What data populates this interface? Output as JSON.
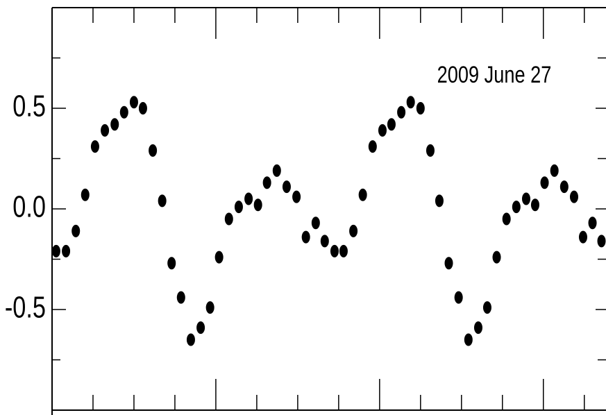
{
  "chart_data": {
    "type": "scatter",
    "annotation": "2009 June 27",
    "x": [
      0.1,
      0.34,
      0.58,
      0.81,
      1.05,
      1.29,
      1.53,
      1.76,
      2.0,
      2.22,
      2.46,
      2.69,
      2.92,
      3.15,
      3.39,
      3.63,
      3.86,
      4.08,
      4.32,
      4.56,
      4.8,
      5.03,
      5.25,
      5.49,
      5.73,
      5.97,
      6.2,
      6.44,
      6.66,
      6.9,
      7.12,
      7.36,
      7.59,
      7.83,
      8.07,
      8.29,
      8.53,
      8.76,
      9.0,
      9.24,
      9.46,
      9.69,
      9.93,
      10.17,
      10.41,
      10.63,
      10.86,
      11.1,
      11.34,
      11.58,
      11.8,
      12.03,
      12.27,
      12.51,
      12.75,
      12.97,
      13.2,
      13.42
    ],
    "values": [
      -0.21,
      -0.21,
      -0.11,
      0.07,
      0.31,
      0.39,
      0.42,
      0.48,
      0.53,
      0.5,
      0.29,
      0.04,
      -0.27,
      -0.44,
      -0.65,
      -0.59,
      -0.49,
      -0.24,
      -0.05,
      0.01,
      0.05,
      0.02,
      0.13,
      0.19,
      0.11,
      0.06,
      -0.14,
      -0.07,
      -0.16,
      -0.21,
      -0.21,
      -0.11,
      0.07,
      0.31,
      0.39,
      0.42,
      0.48,
      0.53,
      0.5,
      0.29,
      0.04,
      -0.27,
      -0.44,
      -0.65,
      -0.59,
      -0.49,
      -0.24,
      -0.05,
      0.01,
      0.05,
      0.02,
      0.13,
      0.19,
      0.11,
      0.06,
      -0.14,
      -0.07,
      -0.16
    ],
    "color": "#000000",
    "xlim": [
      0,
      13.53
    ],
    "xticks": [
      1,
      2,
      3,
      4,
      5,
      6,
      7,
      8,
      9,
      10,
      11,
      12,
      13
    ],
    "ylim": [
      -1.0,
      1.0
    ],
    "yticks": [
      -0.5,
      {
        "value": 0,
        "label": "0.0"
      },
      0.5
    ],
    "y_minor_ticks": [
      -0.75,
      -0.25,
      0.25,
      0.75
    ]
  }
}
